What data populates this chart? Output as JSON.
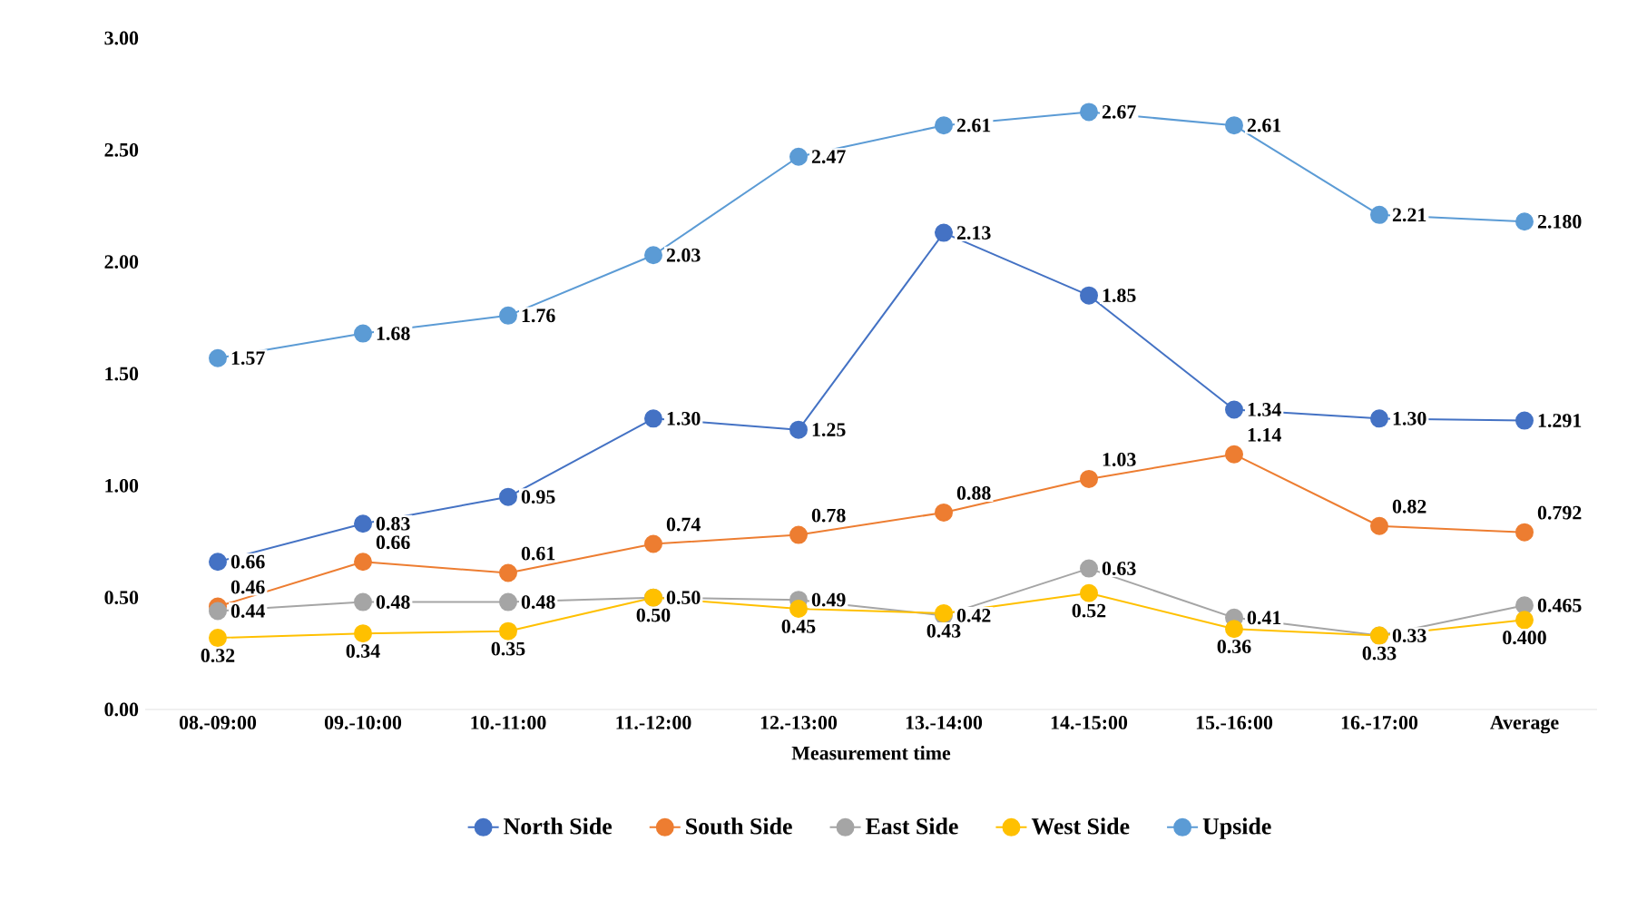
{
  "chart_data": {
    "type": "line",
    "xlabel": "Measurement time",
    "categories": [
      "08.-09:00",
      "09.-10:00",
      "10.-11:00",
      "11.-12:00",
      "12.-13:00",
      "13.-14:00",
      "14.-15:00",
      "15.-16:00",
      "16.-17:00",
      "Average"
    ],
    "series": [
      {
        "name": "North Side",
        "color": "#4472c4",
        "values": [
          0.66,
          0.83,
          0.95,
          1.3,
          1.25,
          2.13,
          1.85,
          1.34,
          1.3,
          1.291
        ],
        "value_labels": [
          "0.66",
          "0.83",
          "0.95",
          "1.30",
          "1.25",
          "2.13",
          "1.85",
          "1.34",
          "1.30",
          "1.291"
        ]
      },
      {
        "name": "South Side",
        "color": "#ed7d31",
        "values": [
          0.46,
          0.66,
          0.61,
          0.74,
          0.78,
          0.88,
          1.03,
          1.14,
          0.82,
          0.792
        ],
        "value_labels": [
          "0.46",
          "0.66",
          "0.61",
          "0.74",
          "0.78",
          "0.88",
          "1.03",
          "1.14",
          "0.82",
          "0.792"
        ]
      },
      {
        "name": "East Side",
        "color": "#a5a5a5",
        "values": [
          0.44,
          0.48,
          0.48,
          0.5,
          0.49,
          0.42,
          0.63,
          0.41,
          0.33,
          0.465
        ],
        "value_labels": [
          "0.44",
          "0.48",
          "0.48",
          "0.50",
          "0.49",
          "0.42",
          "0.63",
          "0.41",
          "0.33",
          "0.465"
        ]
      },
      {
        "name": "West Side",
        "color": "#ffc000",
        "values": [
          0.32,
          0.34,
          0.35,
          0.5,
          0.45,
          0.43,
          0.52,
          0.36,
          0.33,
          0.4
        ],
        "value_labels": [
          "0.32",
          "0.34",
          "0.35",
          "0.50",
          "0.45",
          "0.43",
          "0.52",
          "0.36",
          "0.33",
          "0.400"
        ]
      },
      {
        "name": "Upside",
        "color": "#5b9bd5",
        "values": [
          1.57,
          1.68,
          1.76,
          2.03,
          2.47,
          2.61,
          2.67,
          2.61,
          2.21,
          2.18
        ],
        "value_labels": [
          "1.57",
          "1.68",
          "1.76",
          "2.03",
          "2.47",
          "2.61",
          "2.67",
          "2.61",
          "2.21",
          "2.180"
        ]
      }
    ],
    "ylim": [
      0,
      3
    ],
    "yticks": [
      {
        "value": 0,
        "label": "0.00"
      },
      {
        "value": 0.5,
        "label": "0.50"
      },
      {
        "value": 1,
        "label": "1.00"
      },
      {
        "value": 1.5,
        "label": "1.50"
      },
      {
        "value": 2,
        "label": "2.00"
      },
      {
        "value": 2.5,
        "label": "2.50"
      },
      {
        "value": 3,
        "label": "3.00"
      }
    ],
    "grid": false,
    "legend": "bottom",
    "marker": "circle",
    "line_style": "solid"
  }
}
